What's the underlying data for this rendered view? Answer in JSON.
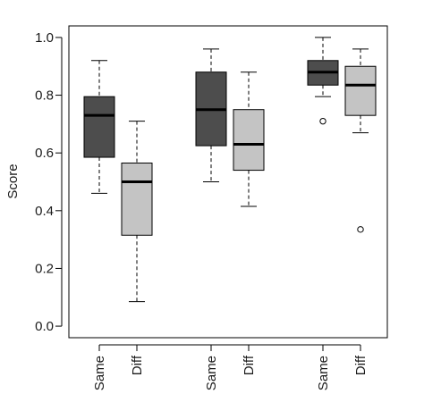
{
  "chart_data": {
    "type": "box",
    "ylabel": "Score",
    "xlabel": "",
    "ylim": [
      -0.04,
      1.04
    ],
    "yticks": [
      "0.0",
      "0.2",
      "0.4",
      "0.6",
      "0.8",
      "1.0"
    ],
    "grid": false,
    "legend": "none",
    "colors": {
      "same": "#4d4d4d",
      "diff": "#c4c4c4",
      "stroke": "#000000"
    },
    "boxes": [
      {
        "label": "Same",
        "group": 1,
        "kind": "same",
        "min": 0.46,
        "q1": 0.585,
        "median": 0.73,
        "q3": 0.795,
        "max": 0.92,
        "outliers": []
      },
      {
        "label": "Diff",
        "group": 1,
        "kind": "diff",
        "min": 0.085,
        "q1": 0.315,
        "median": 0.5,
        "q3": 0.565,
        "max": 0.71,
        "outliers": []
      },
      {
        "label": "Same",
        "group": 2,
        "kind": "same",
        "min": 0.5,
        "q1": 0.625,
        "median": 0.75,
        "q3": 0.88,
        "max": 0.96,
        "outliers": []
      },
      {
        "label": "Diff",
        "group": 2,
        "kind": "diff",
        "min": 0.415,
        "q1": 0.54,
        "median": 0.63,
        "q3": 0.75,
        "max": 0.88,
        "outliers": []
      },
      {
        "label": "Same",
        "group": 3,
        "kind": "same",
        "min": 0.795,
        "q1": 0.835,
        "median": 0.88,
        "q3": 0.92,
        "max": 1.0,
        "outliers": [
          0.71
        ]
      },
      {
        "label": "Diff",
        "group": 3,
        "kind": "diff",
        "min": 0.67,
        "q1": 0.73,
        "median": 0.835,
        "q3": 0.9,
        "max": 0.96,
        "outliers": [
          0.335
        ]
      }
    ]
  }
}
